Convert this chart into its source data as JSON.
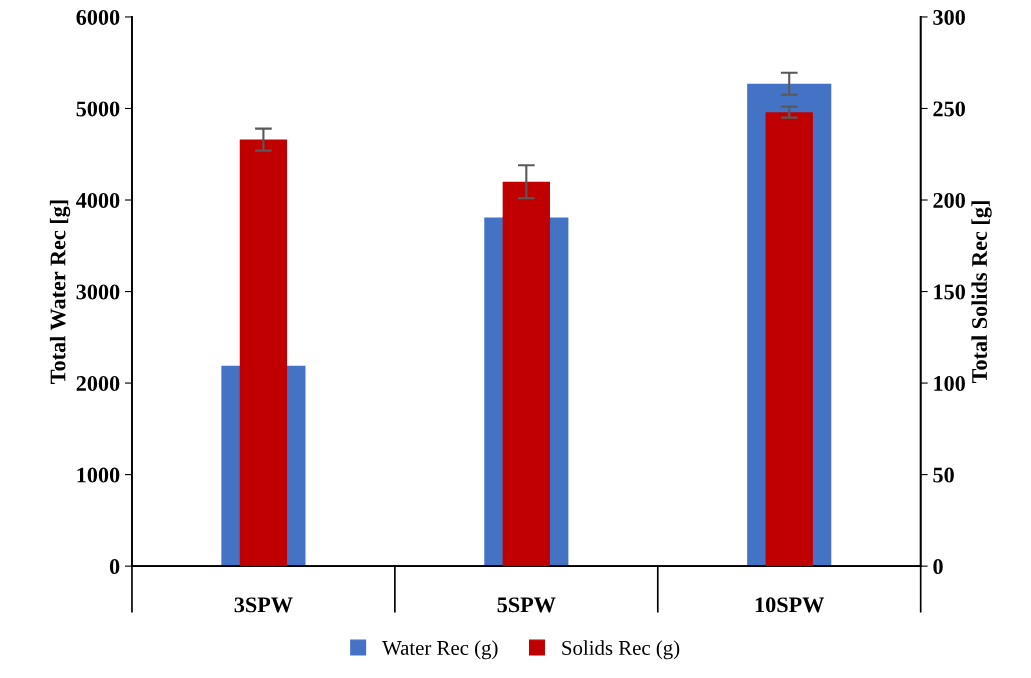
{
  "chart_data": {
    "type": "bar",
    "categories": [
      "3SPW",
      "5SPW",
      "10SPW"
    ],
    "series": [
      {
        "name": "Water Rec (g)",
        "color": "#4472c4",
        "values": [
          2190,
          3810,
          5270
        ],
        "errors": [
          null,
          null,
          120
        ]
      },
      {
        "name": "Solids Rec (g)",
        "color": "#c00000",
        "values": [
          233,
          210,
          248
        ],
        "errors": [
          6,
          9,
          3
        ],
        "axis": "y2"
      }
    ],
    "ylabel": "Total Water Rec [g]",
    "y2label": "Total Solids Rec [g]",
    "ylim": [
      0,
      6000
    ],
    "yticks": [
      0,
      1000,
      2000,
      3000,
      4000,
      5000,
      6000
    ],
    "y2lim": [
      0,
      300
    ],
    "y2ticks": [
      0,
      50,
      100,
      150,
      200,
      250,
      300
    ],
    "grid": false,
    "legend": "bottom"
  }
}
